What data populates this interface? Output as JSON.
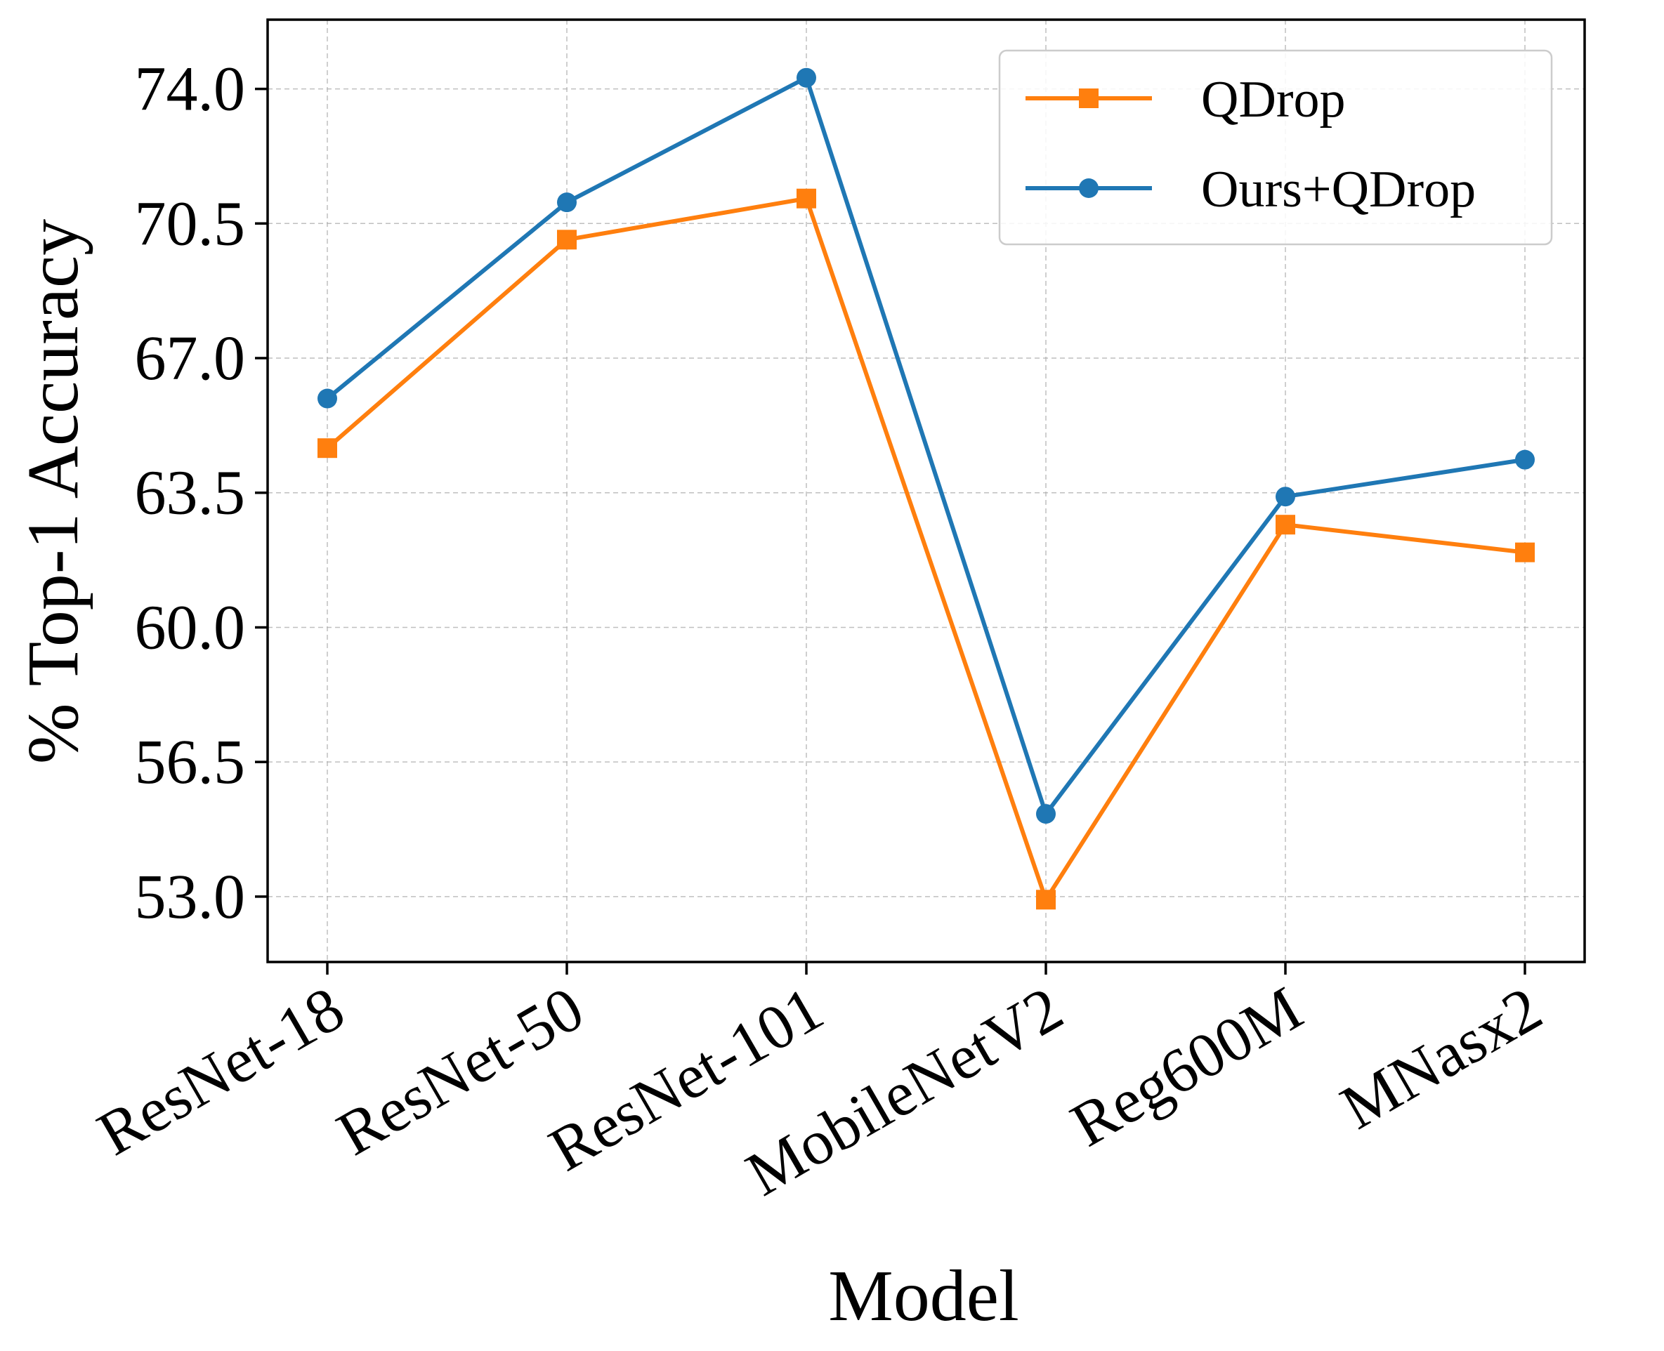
{
  "chart_data": {
    "type": "line",
    "title": "",
    "xlabel": "Model",
    "ylabel": "% Top-1 Accuracy",
    "categories": [
      "ResNet-18",
      "ResNet-50",
      "ResNet-101",
      "MobileNetV2",
      "Reg600M",
      "MNasx2"
    ],
    "yticks": [
      "53.0",
      "56.5",
      "60.0",
      "63.5",
      "67.0",
      "70.5",
      "74.0"
    ],
    "ylim": [
      51.3,
      75.8
    ],
    "grid": true,
    "legend_position": "top-right",
    "series": [
      {
        "name": "QDrop",
        "color": "#ff7f0e",
        "marker": "square",
        "values": [
          64.66,
          70.08,
          71.15,
          52.92,
          62.67,
          61.95
        ]
      },
      {
        "name": "Ours+QDrop",
        "color": "#1f77b4",
        "marker": "circle",
        "values": [
          65.95,
          71.05,
          74.29,
          55.15,
          63.4,
          64.36
        ]
      }
    ]
  }
}
